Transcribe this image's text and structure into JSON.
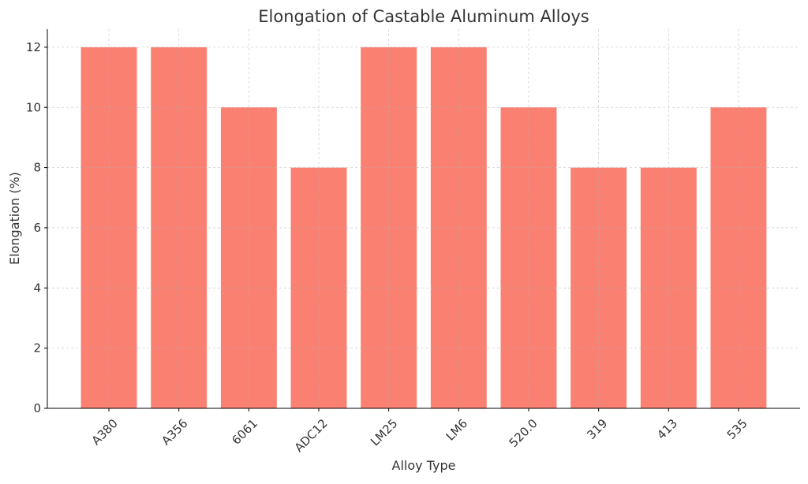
{
  "chart_data": {
    "type": "bar",
    "title": "Elongation of Castable Aluminum Alloys",
    "xlabel": "Alloy Type",
    "ylabel": "Elongation (%)",
    "categories": [
      "A380",
      "A356",
      "6061",
      "ADC12",
      "LM25",
      "LM6",
      "520.0",
      "319",
      "413",
      "535"
    ],
    "values": [
      12,
      12,
      10,
      8,
      12,
      12,
      10,
      8,
      8,
      10
    ],
    "ylim": [
      0,
      12.6
    ],
    "yticks": [
      0,
      2,
      4,
      6,
      8,
      10,
      12
    ],
    "grid": true,
    "bar_color": "#FA8072"
  }
}
